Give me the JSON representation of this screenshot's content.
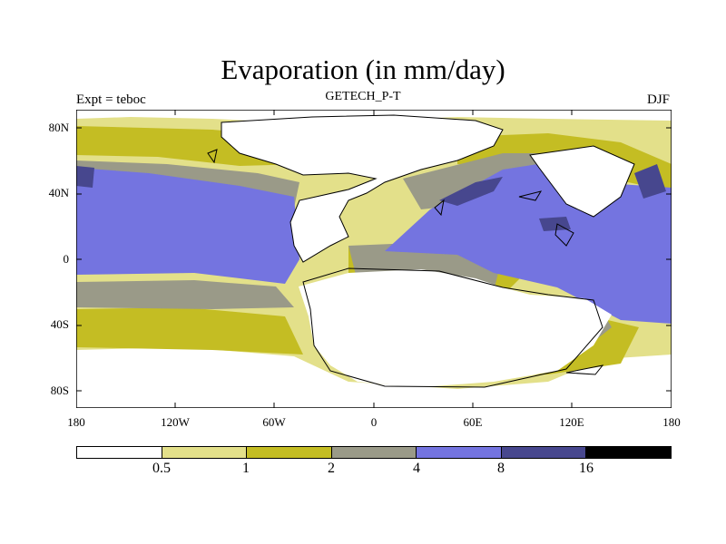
{
  "title": "Evaporation (in mm/day)",
  "subtitle_left": "Expt = teboc",
  "subtitle_center": "GETECH_P-T",
  "subtitle_right": "DJF",
  "y_axis_labels": [
    "80N",
    "40N",
    "0",
    "40S",
    "80S"
  ],
  "x_axis_labels": [
    "180",
    "120W",
    "60W",
    "0",
    "60E",
    "120E",
    "180"
  ],
  "colorbar": {
    "colors": [
      "#ffffff",
      "#e3e08a",
      "#c4bd23",
      "#9a9a88",
      "#7474e0",
      "#47478e",
      "#000000"
    ],
    "labels": [
      "0.5",
      "1",
      "2",
      "4",
      "8",
      "16"
    ]
  },
  "legend_colors": {
    "land": "#ffffff",
    "coast": "#000000"
  }
}
